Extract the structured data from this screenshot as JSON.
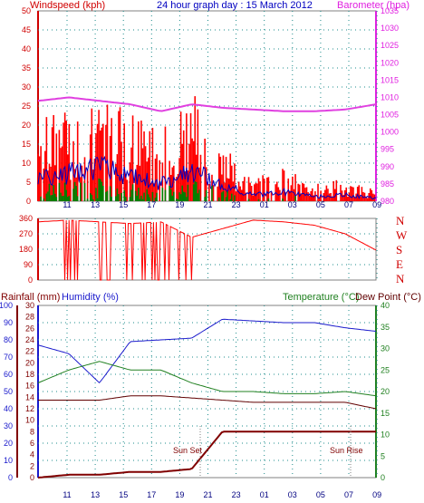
{
  "header": {
    "left": "Windspeed (kph)",
    "center": "24 hour graph day : 15 March 2012",
    "right": "Barometer (hpa)"
  },
  "bottom_header": {
    "left1": "Rainfall (mm)",
    "left2": "Humidity (%)",
    "right1": "Temperature (°C)",
    "right2": "Dew Point (°C)"
  },
  "annotations": {
    "sunset": "Sun Set",
    "sunrise": "Sun Rise"
  },
  "x_ticks": [
    "11",
    "13",
    "15",
    "17",
    "19",
    "21",
    "23",
    "01",
    "03",
    "05",
    "07",
    "09"
  ],
  "wind_ticks": [
    "0",
    "5",
    "10",
    "15",
    "20",
    "25",
    "30",
    "35",
    "40",
    "45",
    "50"
  ],
  "baro_ticks": [
    "980",
    "985",
    "990",
    "995",
    "1000",
    "1005",
    "1010",
    "1015",
    "1020",
    "1025",
    "1030",
    "1035"
  ],
  "dir_ticks": [
    "0",
    "90",
    "180",
    "270",
    "360"
  ],
  "dir_labels": [
    "N",
    "W",
    "S",
    "E",
    "N"
  ],
  "rain_ticks": [
    "0",
    "2",
    "4",
    "6",
    "8",
    "10",
    "12",
    "14",
    "16",
    "18",
    "20",
    "22",
    "24",
    "26",
    "28",
    "30"
  ],
  "hum_ticks": [
    "0",
    "10",
    "20",
    "30",
    "40",
    "50",
    "60",
    "70",
    "80",
    "90",
    "100"
  ],
  "temp_ticks": [
    "0",
    "5",
    "10",
    "15",
    "20",
    "25",
    "30",
    "35",
    "40"
  ],
  "colors": {
    "wind_gust": "#ff0000",
    "wind_avg": "#0000c0",
    "wind_low": "#008000",
    "barometer": "#e040e0",
    "direction": "#ff0000",
    "humidity": "#1a1acc",
    "temperature": "#208020",
    "dewpoint": "#600000",
    "rainfall": "#800000",
    "grid": "#1e8c8c"
  },
  "chart_data": [
    {
      "type": "line",
      "title": "24 hour graph day : 15 March 2012",
      "x_labels": [
        "11",
        "13",
        "15",
        "17",
        "19",
        "21",
        "23",
        "01",
        "03",
        "05",
        "07",
        "09"
      ],
      "series": [
        {
          "name": "Windspeed (kph)",
          "axis": "left",
          "ylim": [
            0,
            50
          ],
          "x": [
            0,
            1,
            2,
            3,
            4,
            5,
            6,
            7,
            8,
            9,
            10,
            11
          ],
          "values": [
            14,
            18,
            22,
            16,
            12,
            20,
            10,
            4,
            6,
            3,
            4,
            2
          ]
        },
        {
          "name": "Barometer (hpa)",
          "axis": "right",
          "ylim": [
            980,
            1035
          ],
          "x": [
            0,
            1,
            2,
            3,
            4,
            5,
            6,
            7,
            8,
            9,
            10,
            11
          ],
          "values": [
            1009,
            1010,
            1009,
            1008,
            1006,
            1008,
            1007,
            1006.5,
            1006,
            1006,
            1006.5,
            1008
          ]
        }
      ]
    },
    {
      "type": "line",
      "title": "",
      "ylim": [
        0,
        360
      ],
      "series": [
        {
          "name": "",
          "x": [
            0,
            1,
            2,
            3,
            4,
            5,
            6,
            7,
            8,
            9,
            10,
            11
          ],
          "values": [
            340,
            350,
            340,
            330,
            340,
            250,
            300,
            350,
            340,
            320,
            270,
            175
          ]
        }
      ]
    },
    {
      "type": "line",
      "title": "",
      "series": [
        {
          "name": "Humidity (%)",
          "axis": "left",
          "ylim": [
            0,
            100
          ],
          "x": [
            0,
            1,
            2,
            3,
            4,
            5,
            6,
            7,
            8,
            9,
            10,
            11
          ],
          "values": [
            77,
            72,
            55,
            79,
            80,
            81,
            92,
            91,
            90,
            90,
            87,
            85
          ]
        },
        {
          "name": "Temperature (°C)",
          "axis": "right",
          "ylim": [
            0,
            40
          ],
          "x": [
            0,
            1,
            2,
            3,
            4,
            5,
            6,
            7,
            8,
            9,
            10,
            11
          ],
          "values": [
            22,
            25,
            27,
            25,
            25,
            22,
            20,
            20,
            19.5,
            19.5,
            20,
            19
          ]
        },
        {
          "name": "Dew Point (°C)",
          "axis": "right",
          "ylim": [
            0,
            40
          ],
          "x": [
            0,
            1,
            2,
            3,
            4,
            5,
            6,
            7,
            8,
            9,
            10,
            11
          ],
          "values": [
            18,
            18,
            18,
            19,
            19,
            18.5,
            18,
            17.5,
            17.5,
            17.5,
            17.5,
            16
          ]
        },
        {
          "name": "Rainfall (mm)",
          "axis": "left2",
          "ylim": [
            0,
            30
          ],
          "x": [
            0,
            1,
            2,
            3,
            4,
            5,
            6,
            7,
            8,
            9,
            10,
            11
          ],
          "values": [
            0,
            0.5,
            0.5,
            1,
            1,
            1.5,
            8,
            8,
            8,
            8,
            8,
            8
          ]
        }
      ]
    }
  ]
}
